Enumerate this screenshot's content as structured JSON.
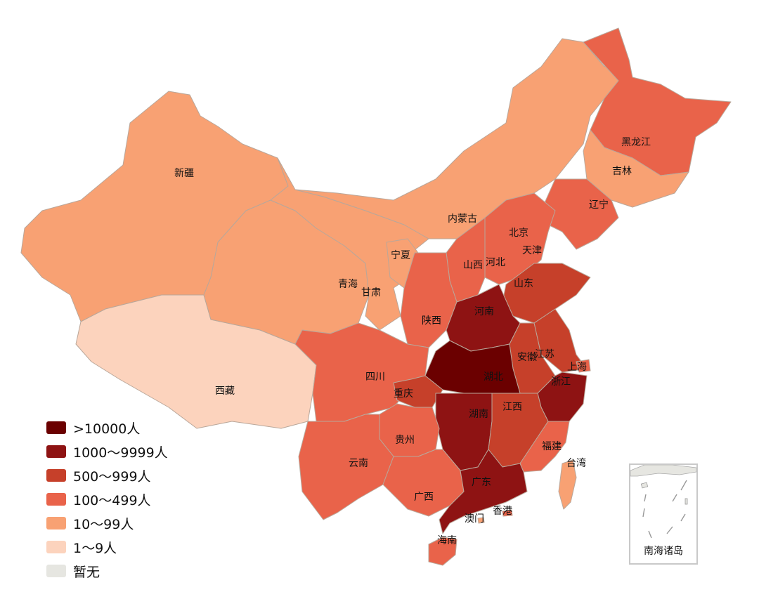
{
  "legend": {
    "items": [
      {
        "label": ">10000人",
        "color": "#6b0000"
      },
      {
        "label": "1000～9999人",
        "color": "#8e1313"
      },
      {
        "label": "500～999人",
        "color": "#c6402a"
      },
      {
        "label": "100～499人",
        "color": "#e9634a"
      },
      {
        "label": "10～99人",
        "color": "#f8a173"
      },
      {
        "label": "1～9人",
        "color": "#fcd3bd"
      },
      {
        "label": "暂无",
        "color": "#e6e6e1"
      }
    ]
  },
  "provinces": [
    {
      "name": "新疆",
      "level": 4
    },
    {
      "name": "西藏",
      "level": 5
    },
    {
      "name": "青海",
      "level": 4
    },
    {
      "name": "甘肃",
      "level": 4
    },
    {
      "name": "宁夏",
      "level": 4
    },
    {
      "name": "内蒙古",
      "level": 4
    },
    {
      "name": "黑龙江",
      "level": 3
    },
    {
      "name": "吉林",
      "level": 4
    },
    {
      "name": "辽宁",
      "level": 3
    },
    {
      "name": "北京",
      "level": 3
    },
    {
      "name": "天津",
      "level": 3
    },
    {
      "name": "河北",
      "level": 3
    },
    {
      "name": "山西",
      "level": 3
    },
    {
      "name": "陕西",
      "level": 3
    },
    {
      "name": "山东",
      "level": 2
    },
    {
      "name": "河南",
      "level": 1
    },
    {
      "name": "江苏",
      "level": 2
    },
    {
      "name": "安徽",
      "level": 2
    },
    {
      "name": "上海",
      "level": 3
    },
    {
      "name": "湖北",
      "level": 0
    },
    {
      "name": "浙江",
      "level": 1
    },
    {
      "name": "四川",
      "level": 3
    },
    {
      "name": "重庆",
      "level": 2
    },
    {
      "name": "湖南",
      "level": 1
    },
    {
      "name": "江西",
      "level": 2
    },
    {
      "name": "贵州",
      "level": 3
    },
    {
      "name": "福建",
      "level": 3
    },
    {
      "name": "云南",
      "level": 3
    },
    {
      "name": "台湾",
      "level": 4
    },
    {
      "name": "广西",
      "level": 3
    },
    {
      "name": "广东",
      "level": 1
    },
    {
      "name": "香港",
      "level": 3
    },
    {
      "name": "澳门",
      "level": 4
    },
    {
      "name": "海南",
      "level": 3
    }
  ],
  "inset": {
    "label": "南海诸岛"
  }
}
